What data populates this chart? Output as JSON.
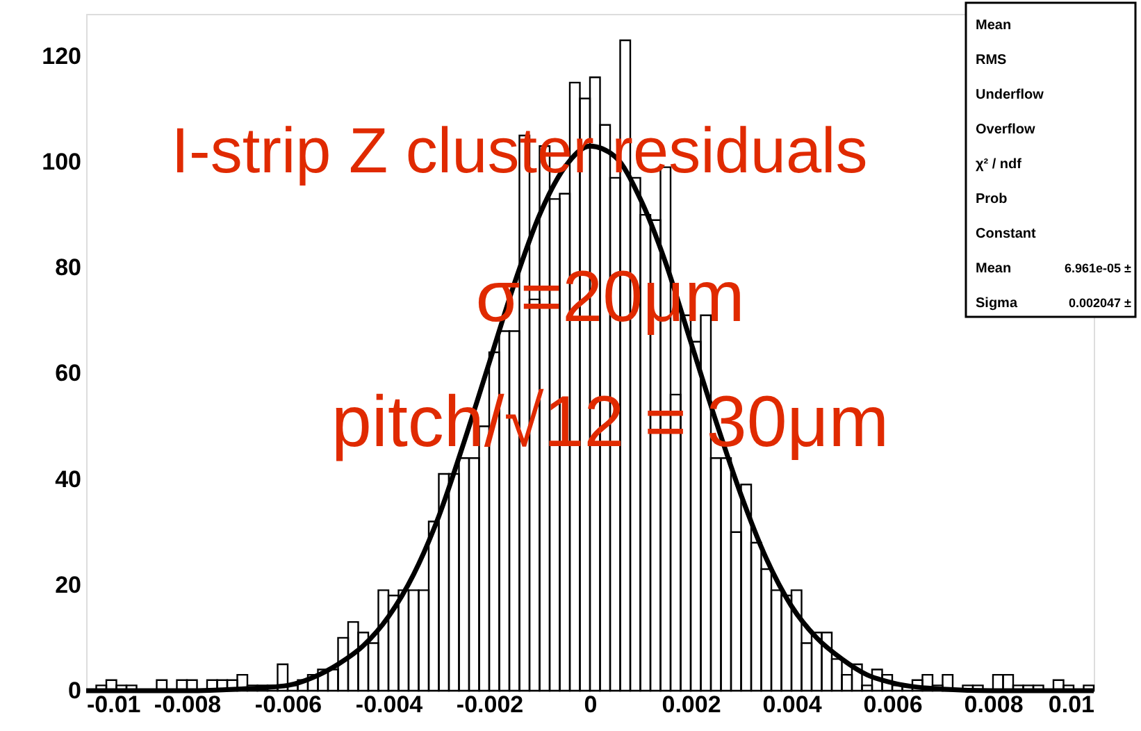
{
  "chart_data": {
    "type": "histogram",
    "annotations": [
      "I-strip Z cluster residuals",
      "σ=20μm",
      "pitch/√12 = 30μm",
      "Mean",
      "RMS",
      "Underflow",
      "Overflow",
      "χ² / ndf",
      "Prob",
      "Constant",
      "Mean",
      "Sigma",
      "6.961e-05 ±",
      "0.002047 ±"
    ],
    "xlim": [
      -0.01,
      0.01
    ],
    "xticks": [
      -0.01,
      -0.008,
      -0.006,
      -0.004,
      -0.002,
      0,
      0.002,
      0.004,
      0.006,
      0.008,
      0.01
    ],
    "ylim": [
      0,
      128
    ],
    "yticks": [
      0,
      20,
      40,
      60,
      80,
      100,
      120
    ],
    "grid": false,
    "series": [
      {
        "color": "#000000",
        "bins": [
          -0.01,
          -0.0098,
          -0.0096,
          -0.0094,
          -0.0092,
          -0.009,
          -0.0088,
          -0.0086,
          -0.0084,
          -0.0082,
          -0.008,
          -0.0078,
          -0.0076,
          -0.0074,
          -0.0072,
          -0.007,
          -0.0068,
          -0.0066,
          -0.0064,
          -0.0062,
          -0.006,
          -0.0058,
          -0.0056,
          -0.0054,
          -0.0052,
          -0.005,
          -0.0048,
          -0.0046,
          -0.0044,
          -0.0042,
          -0.004,
          -0.0038,
          -0.0036,
          -0.0034,
          -0.0032,
          -0.003,
          -0.0028,
          -0.0026,
          -0.0024,
          -0.0022,
          -0.002,
          -0.0018,
          -0.0016,
          -0.0014,
          -0.0012,
          -0.001,
          -0.0008,
          -0.0006,
          -0.0004,
          -0.0002,
          0,
          0.0002,
          0.0004,
          0.0006,
          0.0008,
          0.001,
          0.0012,
          0.0014,
          0.0016,
          0.0018,
          0.002,
          0.0022,
          0.0024,
          0.0026,
          0.0028,
          0.003,
          0.0032,
          0.0034,
          0.0036,
          0.0038,
          0.004,
          0.0042,
          0.0044,
          0.0046,
          0.0048,
          0.005,
          0.0052,
          0.0054,
          0.0056,
          0.0058,
          0.006,
          0.0062,
          0.0064,
          0.0066,
          0.0068,
          0.007,
          0.0072,
          0.0074,
          0.0076,
          0.0078,
          0.008,
          0.0082,
          0.0084,
          0.0086,
          0.0088,
          0.009,
          0.0092,
          0.0094,
          0.0096,
          0.0098,
          0.01
        ],
        "values": [
          0,
          1,
          2,
          1,
          1,
          0,
          0,
          2,
          0,
          2,
          2,
          0,
          2,
          2,
          2,
          3,
          1,
          1,
          1,
          5,
          1,
          2,
          3,
          4,
          4,
          10,
          13,
          11,
          9,
          19,
          18,
          19,
          19,
          19,
          32,
          41,
          41,
          44,
          44,
          50,
          64,
          68,
          68,
          105,
          74,
          103,
          93,
          94,
          115,
          112,
          116,
          107,
          97,
          123,
          97,
          90,
          89,
          99,
          56,
          71,
          66,
          71,
          44,
          44,
          30,
          39,
          28,
          23,
          19,
          18,
          19,
          9,
          11,
          11,
          6,
          3,
          5,
          1,
          4,
          3,
          1,
          1,
          2,
          3,
          1,
          3,
          0,
          1,
          1,
          0,
          3,
          3,
          1,
          1,
          1,
          0,
          2,
          1,
          0,
          1
        ]
      },
      {
        "type": "line",
        "color": "#000000",
        "line_style": "solid",
        "x": [
          -0.01,
          -0.008,
          -0.007,
          -0.006,
          -0.0055,
          -0.005,
          -0.0045,
          -0.004,
          -0.0035,
          -0.003,
          -0.0025,
          -0.002,
          -0.0015,
          -0.001,
          -0.0005,
          0,
          0.0005,
          0.001,
          0.0015,
          0.002,
          0.0025,
          0.003,
          0.0035,
          0.004,
          0.0045,
          0.005,
          0.0055,
          0.006,
          0.007,
          0.008,
          0.01
        ],
        "values": [
          0,
          0,
          0.3,
          1,
          2.5,
          5,
          8.5,
          14,
          22,
          33,
          47,
          62,
          77,
          90,
          99,
          103,
          101,
          93,
          81,
          66,
          51,
          37,
          25,
          16,
          10,
          6,
          3,
          1.5,
          0.3,
          0,
          0
        ]
      }
    ]
  }
}
